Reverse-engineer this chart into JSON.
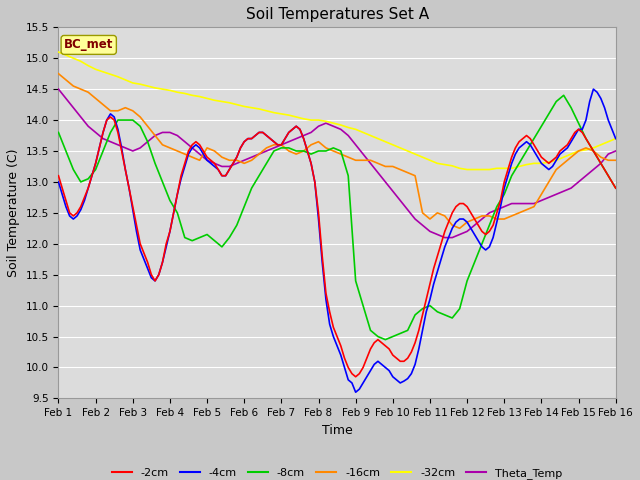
{
  "title": "Soil Temperatures Set A",
  "xlabel": "Time",
  "ylabel": "Soil Temperature (C)",
  "ylim": [
    9.5,
    15.5
  ],
  "xlim": [
    0,
    15
  ],
  "xtick_labels": [
    "Feb 1",
    "Feb 2",
    "Feb 3",
    "Feb 4",
    "Feb 5",
    "Feb 6",
    "Feb 7",
    "Feb 8",
    "Feb 9",
    "Feb 10",
    "Feb 11",
    "Feb 12",
    "Feb 13",
    "Feb 14",
    "Feb 15",
    "Feb 16"
  ],
  "xtick_positions": [
    0,
    1,
    2,
    3,
    4,
    5,
    6,
    7,
    8,
    9,
    10,
    11,
    12,
    13,
    14,
    15
  ],
  "ytick_positions": [
    9.5,
    10.0,
    10.5,
    11.0,
    11.5,
    12.0,
    12.5,
    13.0,
    13.5,
    14.0,
    14.5,
    15.0,
    15.5
  ],
  "background_color": "#dcdcdc",
  "grid_color": "#ffffff",
  "fig_bg": "#c8c8c8",
  "annotation_text": "BC_met",
  "annotation_color": "#800000",
  "annotation_bg": "#ffff99",
  "annotation_edge": "#999900",
  "series_order": [
    "theta",
    "32cm",
    "16cm",
    "8cm",
    "4cm",
    "2cm"
  ],
  "series": {
    "2cm": {
      "color": "#ff0000",
      "label": "-2cm",
      "x": [
        0.0,
        0.1,
        0.2,
        0.3,
        0.4,
        0.5,
        0.6,
        0.7,
        0.8,
        0.9,
        1.0,
        1.1,
        1.2,
        1.3,
        1.4,
        1.5,
        1.6,
        1.7,
        1.8,
        1.9,
        2.0,
        2.1,
        2.2,
        2.3,
        2.4,
        2.5,
        2.6,
        2.7,
        2.8,
        2.9,
        3.0,
        3.1,
        3.2,
        3.3,
        3.4,
        3.5,
        3.6,
        3.7,
        3.8,
        3.9,
        4.0,
        4.1,
        4.2,
        4.3,
        4.4,
        4.5,
        4.6,
        4.7,
        4.8,
        4.9,
        5.0,
        5.1,
        5.2,
        5.3,
        5.4,
        5.5,
        5.6,
        5.7,
        5.8,
        5.9,
        6.0,
        6.1,
        6.2,
        6.3,
        6.4,
        6.5,
        6.6,
        6.7,
        6.8,
        6.9,
        7.0,
        7.1,
        7.2,
        7.3,
        7.4,
        7.5,
        7.6,
        7.7,
        7.8,
        7.9,
        8.0,
        8.1,
        8.2,
        8.3,
        8.4,
        8.5,
        8.6,
        8.7,
        8.8,
        8.9,
        9.0,
        9.1,
        9.2,
        9.3,
        9.4,
        9.5,
        9.6,
        9.7,
        9.8,
        9.9,
        10.0,
        10.1,
        10.2,
        10.3,
        10.4,
        10.5,
        10.6,
        10.7,
        10.8,
        10.9,
        11.0,
        11.1,
        11.2,
        11.3,
        11.4,
        11.5,
        11.6,
        11.7,
        11.8,
        11.9,
        12.0,
        12.1,
        12.2,
        12.3,
        12.4,
        12.5,
        12.6,
        12.7,
        12.8,
        12.9,
        13.0,
        13.1,
        13.2,
        13.3,
        13.4,
        13.5,
        13.6,
        13.7,
        13.8,
        13.9,
        14.0,
        14.1,
        14.2,
        14.3,
        14.4,
        14.5,
        14.6,
        14.7,
        14.8,
        14.9,
        15.0
      ],
      "y": [
        13.1,
        12.9,
        12.7,
        12.5,
        12.45,
        12.5,
        12.6,
        12.75,
        12.9,
        13.1,
        13.3,
        13.55,
        13.8,
        14.0,
        14.05,
        14.0,
        13.8,
        13.5,
        13.2,
        12.9,
        12.6,
        12.3,
        12.0,
        11.85,
        11.7,
        11.5,
        11.4,
        11.5,
        11.7,
        12.0,
        12.2,
        12.5,
        12.8,
        13.1,
        13.3,
        13.5,
        13.6,
        13.65,
        13.6,
        13.5,
        13.4,
        13.35,
        13.3,
        13.2,
        13.1,
        13.1,
        13.2,
        13.3,
        13.4,
        13.55,
        13.65,
        13.7,
        13.7,
        13.75,
        13.8,
        13.8,
        13.75,
        13.7,
        13.65,
        13.6,
        13.6,
        13.7,
        13.8,
        13.85,
        13.9,
        13.85,
        13.7,
        13.5,
        13.3,
        13.0,
        12.5,
        11.8,
        11.2,
        10.9,
        10.65,
        10.5,
        10.35,
        10.15,
        10.0,
        9.9,
        9.85,
        9.9,
        10.0,
        10.15,
        10.3,
        10.4,
        10.45,
        10.4,
        10.35,
        10.3,
        10.2,
        10.15,
        10.1,
        10.1,
        10.15,
        10.25,
        10.4,
        10.6,
        10.85,
        11.1,
        11.35,
        11.6,
        11.8,
        12.0,
        12.2,
        12.35,
        12.5,
        12.6,
        12.65,
        12.65,
        12.6,
        12.5,
        12.4,
        12.3,
        12.2,
        12.15,
        12.2,
        12.3,
        12.5,
        12.7,
        13.0,
        13.2,
        13.4,
        13.55,
        13.65,
        13.7,
        13.75,
        13.7,
        13.6,
        13.5,
        13.4,
        13.35,
        13.3,
        13.35,
        13.4,
        13.5,
        13.55,
        13.6,
        13.7,
        13.8,
        13.85,
        13.8,
        13.7,
        13.6,
        13.5,
        13.4,
        13.3,
        13.2,
        13.1,
        13.0,
        12.9
      ]
    },
    "4cm": {
      "color": "#0000ff",
      "label": "-4cm",
      "x": [
        0.0,
        0.1,
        0.2,
        0.3,
        0.4,
        0.5,
        0.6,
        0.7,
        0.8,
        0.9,
        1.0,
        1.1,
        1.2,
        1.3,
        1.4,
        1.5,
        1.6,
        1.7,
        1.8,
        1.9,
        2.0,
        2.1,
        2.2,
        2.3,
        2.4,
        2.5,
        2.6,
        2.7,
        2.8,
        2.9,
        3.0,
        3.1,
        3.2,
        3.3,
        3.4,
        3.5,
        3.6,
        3.7,
        3.8,
        3.9,
        4.0,
        4.1,
        4.2,
        4.3,
        4.4,
        4.5,
        4.6,
        4.7,
        4.8,
        4.9,
        5.0,
        5.1,
        5.2,
        5.3,
        5.4,
        5.5,
        5.6,
        5.7,
        5.8,
        5.9,
        6.0,
        6.1,
        6.2,
        6.3,
        6.4,
        6.5,
        6.6,
        6.7,
        6.8,
        6.9,
        7.0,
        7.1,
        7.2,
        7.3,
        7.4,
        7.5,
        7.6,
        7.7,
        7.8,
        7.9,
        8.0,
        8.1,
        8.2,
        8.3,
        8.4,
        8.5,
        8.6,
        8.7,
        8.8,
        8.9,
        9.0,
        9.1,
        9.2,
        9.3,
        9.4,
        9.5,
        9.6,
        9.7,
        9.8,
        9.9,
        10.0,
        10.1,
        10.2,
        10.3,
        10.4,
        10.5,
        10.6,
        10.7,
        10.8,
        10.9,
        11.0,
        11.1,
        11.2,
        11.3,
        11.4,
        11.5,
        11.6,
        11.7,
        11.8,
        11.9,
        12.0,
        12.1,
        12.2,
        12.3,
        12.4,
        12.5,
        12.6,
        12.7,
        12.8,
        12.9,
        13.0,
        13.1,
        13.2,
        13.3,
        13.4,
        13.5,
        13.6,
        13.7,
        13.8,
        13.9,
        14.0,
        14.1,
        14.2,
        14.3,
        14.4,
        14.5,
        14.6,
        14.7,
        14.8,
        14.9,
        15.0
      ],
      "y": [
        13.0,
        12.8,
        12.6,
        12.45,
        12.4,
        12.45,
        12.55,
        12.7,
        12.9,
        13.1,
        13.3,
        13.55,
        13.8,
        14.0,
        14.1,
        14.05,
        13.85,
        13.55,
        13.2,
        12.9,
        12.55,
        12.2,
        11.9,
        11.75,
        11.6,
        11.45,
        11.4,
        11.5,
        11.7,
        11.95,
        12.2,
        12.5,
        12.8,
        13.05,
        13.25,
        13.45,
        13.55,
        13.6,
        13.55,
        13.45,
        13.35,
        13.3,
        13.25,
        13.2,
        13.1,
        13.1,
        13.2,
        13.3,
        13.4,
        13.55,
        13.65,
        13.7,
        13.7,
        13.75,
        13.8,
        13.8,
        13.75,
        13.7,
        13.65,
        13.6,
        13.6,
        13.7,
        13.8,
        13.85,
        13.9,
        13.85,
        13.7,
        13.5,
        13.3,
        13.0,
        12.4,
        11.7,
        11.1,
        10.7,
        10.5,
        10.35,
        10.2,
        10.0,
        9.8,
        9.75,
        9.6,
        9.65,
        9.75,
        9.85,
        9.95,
        10.05,
        10.1,
        10.05,
        10.0,
        9.95,
        9.85,
        9.8,
        9.75,
        9.78,
        9.82,
        9.9,
        10.05,
        10.3,
        10.6,
        10.9,
        11.1,
        11.35,
        11.55,
        11.75,
        11.95,
        12.1,
        12.25,
        12.35,
        12.4,
        12.4,
        12.35,
        12.25,
        12.15,
        12.05,
        11.95,
        11.9,
        11.95,
        12.1,
        12.35,
        12.6,
        12.9,
        13.1,
        13.3,
        13.45,
        13.55,
        13.6,
        13.65,
        13.6,
        13.5,
        13.4,
        13.3,
        13.25,
        13.2,
        13.25,
        13.35,
        13.45,
        13.5,
        13.55,
        13.65,
        13.75,
        13.85,
        13.85,
        14.0,
        14.3,
        14.5,
        14.45,
        14.35,
        14.2,
        14.0,
        13.85,
        13.7
      ]
    },
    "8cm": {
      "color": "#00cc00",
      "label": "-8cm",
      "x": [
        0.0,
        0.2,
        0.4,
        0.6,
        0.8,
        1.0,
        1.2,
        1.4,
        1.6,
        1.8,
        2.0,
        2.2,
        2.4,
        2.6,
        2.8,
        3.0,
        3.2,
        3.4,
        3.6,
        3.8,
        4.0,
        4.2,
        4.4,
        4.6,
        4.8,
        5.0,
        5.2,
        5.4,
        5.6,
        5.8,
        6.0,
        6.2,
        6.4,
        6.6,
        6.8,
        7.0,
        7.2,
        7.4,
        7.6,
        7.8,
        8.0,
        8.2,
        8.4,
        8.6,
        8.8,
        9.0,
        9.2,
        9.4,
        9.6,
        9.8,
        10.0,
        10.2,
        10.4,
        10.6,
        10.8,
        11.0,
        11.2,
        11.4,
        11.6,
        11.8,
        12.0,
        12.2,
        12.4,
        12.6,
        12.8,
        13.0,
        13.2,
        13.4,
        13.6,
        13.8,
        14.0,
        14.2,
        14.4,
        14.6,
        14.8,
        15.0
      ],
      "y": [
        13.8,
        13.5,
        13.2,
        13.0,
        13.05,
        13.2,
        13.5,
        13.8,
        14.0,
        14.0,
        14.0,
        13.9,
        13.65,
        13.3,
        13.0,
        12.7,
        12.5,
        12.1,
        12.05,
        12.1,
        12.15,
        12.05,
        11.95,
        12.1,
        12.3,
        12.6,
        12.9,
        13.1,
        13.3,
        13.5,
        13.55,
        13.55,
        13.5,
        13.5,
        13.45,
        13.5,
        13.5,
        13.55,
        13.5,
        13.1,
        11.4,
        11.0,
        10.6,
        10.5,
        10.45,
        10.5,
        10.55,
        10.6,
        10.85,
        10.95,
        11.0,
        10.9,
        10.85,
        10.8,
        10.95,
        11.4,
        11.7,
        12.0,
        12.3,
        12.6,
        12.8,
        13.1,
        13.3,
        13.5,
        13.7,
        13.9,
        14.1,
        14.3,
        14.4,
        14.2,
        13.95,
        13.7,
        13.5,
        13.3,
        13.1,
        12.9
      ]
    },
    "16cm": {
      "color": "#ff8800",
      "label": "-16cm",
      "x": [
        0.0,
        0.2,
        0.4,
        0.6,
        0.8,
        1.0,
        1.2,
        1.4,
        1.6,
        1.8,
        2.0,
        2.2,
        2.4,
        2.6,
        2.8,
        3.0,
        3.2,
        3.4,
        3.6,
        3.8,
        4.0,
        4.2,
        4.4,
        4.6,
        4.8,
        5.0,
        5.2,
        5.4,
        5.6,
        5.8,
        6.0,
        6.2,
        6.4,
        6.6,
        6.8,
        7.0,
        7.2,
        7.4,
        7.6,
        7.8,
        8.0,
        8.2,
        8.4,
        8.6,
        8.8,
        9.0,
        9.2,
        9.4,
        9.6,
        9.8,
        10.0,
        10.2,
        10.4,
        10.6,
        10.8,
        11.0,
        11.2,
        11.4,
        11.6,
        11.8,
        12.0,
        12.2,
        12.4,
        12.6,
        12.8,
        13.0,
        13.2,
        13.4,
        13.6,
        13.8,
        14.0,
        14.2,
        14.4,
        14.6,
        14.8,
        15.0
      ],
      "y": [
        14.75,
        14.65,
        14.55,
        14.5,
        14.45,
        14.35,
        14.25,
        14.15,
        14.15,
        14.2,
        14.15,
        14.05,
        13.9,
        13.75,
        13.6,
        13.55,
        13.5,
        13.45,
        13.4,
        13.35,
        13.55,
        13.5,
        13.4,
        13.35,
        13.35,
        13.3,
        13.35,
        13.45,
        13.55,
        13.6,
        13.6,
        13.5,
        13.45,
        13.5,
        13.6,
        13.65,
        13.55,
        13.5,
        13.45,
        13.4,
        13.35,
        13.35,
        13.35,
        13.3,
        13.25,
        13.25,
        13.2,
        13.15,
        13.1,
        12.5,
        12.4,
        12.5,
        12.45,
        12.3,
        12.25,
        12.35,
        12.4,
        12.45,
        12.45,
        12.4,
        12.4,
        12.45,
        12.5,
        12.55,
        12.6,
        12.8,
        13.0,
        13.2,
        13.3,
        13.4,
        13.5,
        13.55,
        13.5,
        13.4,
        13.35,
        13.35
      ]
    },
    "32cm": {
      "color": "#ffff00",
      "label": "-32cm",
      "x": [
        0.0,
        0.2,
        0.4,
        0.6,
        0.8,
        1.0,
        1.2,
        1.4,
        1.6,
        1.8,
        2.0,
        2.2,
        2.4,
        2.6,
        2.8,
        3.0,
        3.2,
        3.4,
        3.6,
        3.8,
        4.0,
        4.2,
        4.4,
        4.6,
        4.8,
        5.0,
        5.2,
        5.4,
        5.6,
        5.8,
        6.0,
        6.2,
        6.4,
        6.6,
        6.8,
        7.0,
        7.2,
        7.4,
        7.6,
        7.8,
        8.0,
        8.2,
        8.4,
        8.6,
        8.8,
        9.0,
        9.2,
        9.4,
        9.6,
        9.8,
        10.0,
        10.2,
        10.4,
        10.6,
        10.8,
        11.0,
        11.2,
        11.4,
        11.6,
        11.8,
        12.0,
        12.2,
        12.4,
        12.6,
        12.8,
        13.0,
        13.2,
        13.4,
        13.6,
        13.8,
        14.0,
        14.2,
        14.4,
        14.6,
        14.8,
        15.0
      ],
      "y": [
        15.1,
        15.05,
        15.0,
        14.95,
        14.88,
        14.82,
        14.78,
        14.74,
        14.7,
        14.65,
        14.6,
        14.58,
        14.55,
        14.52,
        14.5,
        14.48,
        14.45,
        14.43,
        14.4,
        14.38,
        14.35,
        14.32,
        14.3,
        14.28,
        14.25,
        14.22,
        14.2,
        14.18,
        14.15,
        14.12,
        14.1,
        14.08,
        14.05,
        14.02,
        14.0,
        14.0,
        13.98,
        13.95,
        13.92,
        13.88,
        13.85,
        13.8,
        13.75,
        13.7,
        13.65,
        13.6,
        13.55,
        13.5,
        13.45,
        13.4,
        13.35,
        13.3,
        13.28,
        13.26,
        13.22,
        13.2,
        13.2,
        13.2,
        13.2,
        13.22,
        13.22,
        13.22,
        13.25,
        13.28,
        13.3,
        13.3,
        13.32,
        13.35,
        13.4,
        13.45,
        13.5,
        13.52,
        13.55,
        13.6,
        13.65,
        13.7
      ]
    },
    "theta": {
      "color": "#aa00aa",
      "label": "Theta_Temp",
      "x": [
        0.0,
        0.2,
        0.4,
        0.6,
        0.8,
        1.0,
        1.2,
        1.4,
        1.6,
        1.8,
        2.0,
        2.2,
        2.4,
        2.6,
        2.8,
        3.0,
        3.2,
        3.4,
        3.6,
        3.8,
        4.0,
        4.2,
        4.4,
        4.6,
        4.8,
        5.0,
        5.2,
        5.4,
        5.6,
        5.8,
        6.0,
        6.2,
        6.4,
        6.6,
        6.8,
        7.0,
        7.2,
        7.4,
        7.6,
        7.8,
        8.0,
        8.2,
        8.4,
        8.6,
        8.8,
        9.0,
        9.2,
        9.4,
        9.6,
        9.8,
        10.0,
        10.2,
        10.4,
        10.6,
        10.8,
        11.0,
        11.2,
        11.4,
        11.6,
        11.8,
        12.0,
        12.2,
        12.4,
        12.6,
        12.8,
        13.0,
        13.2,
        13.4,
        13.6,
        13.8,
        14.0,
        14.2,
        14.4,
        14.6,
        14.8,
        15.0
      ],
      "y": [
        14.5,
        14.35,
        14.2,
        14.05,
        13.9,
        13.8,
        13.7,
        13.65,
        13.6,
        13.55,
        13.5,
        13.55,
        13.65,
        13.75,
        13.8,
        13.8,
        13.75,
        13.65,
        13.55,
        13.45,
        13.35,
        13.3,
        13.25,
        13.25,
        13.3,
        13.35,
        13.4,
        13.45,
        13.5,
        13.55,
        13.6,
        13.65,
        13.7,
        13.75,
        13.8,
        13.9,
        13.95,
        13.9,
        13.85,
        13.75,
        13.6,
        13.45,
        13.3,
        13.15,
        13.0,
        12.85,
        12.7,
        12.55,
        12.4,
        12.3,
        12.2,
        12.15,
        12.1,
        12.1,
        12.15,
        12.2,
        12.3,
        12.4,
        12.5,
        12.55,
        12.6,
        12.65,
        12.65,
        12.65,
        12.65,
        12.7,
        12.75,
        12.8,
        12.85,
        12.9,
        13.0,
        13.1,
        13.2,
        13.3,
        13.45,
        13.5
      ]
    }
  }
}
